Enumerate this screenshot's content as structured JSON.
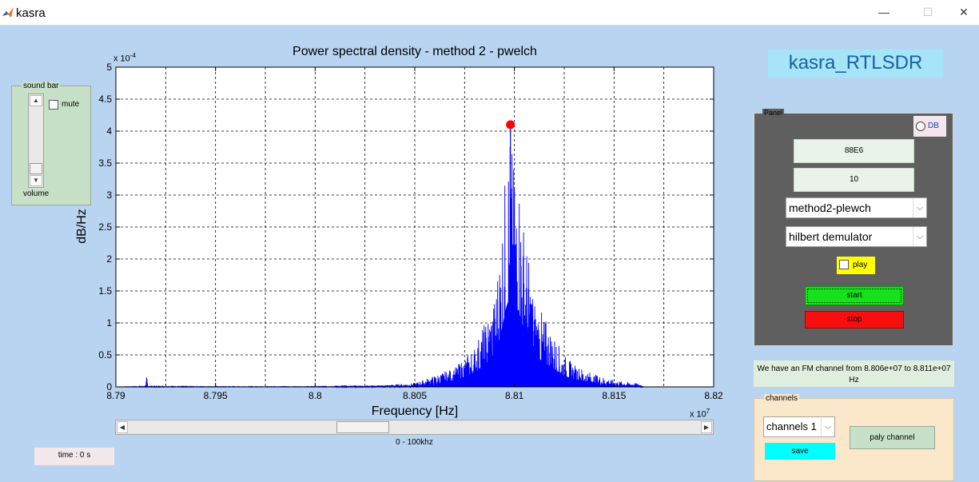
{
  "window": {
    "title": "kasra",
    "min_symbol": "—",
    "max_symbol": "☐",
    "close_symbol": "✕",
    "icon": "matlab-icon"
  },
  "sound_bar": {
    "legend": "sound bar",
    "mute_label": "mute",
    "volume_label": "volume",
    "up_arrow": "▲",
    "down_arrow": "▼"
  },
  "time_label": "time : 0 s",
  "slider": {
    "left_arrow": "◀",
    "right_arrow": "▶",
    "range_label": "0 - 100khz"
  },
  "app_name": "kasra_RTLSDR",
  "panel": {
    "legend": "Panel",
    "db_label": "DB",
    "freq_value": "88E6",
    "gain_value": "10",
    "method_value": "method2-plewch",
    "demod_value": "hilbert demulator",
    "play_label": "play",
    "start_label": "start",
    "stop_label": "stop",
    "chevron": "⌵"
  },
  "info_text": "We have an FM channel from 8.806e+07 to 8.811e+07 Hz",
  "channels": {
    "legend": "channels",
    "select_value": "channels 1",
    "save_label": "save",
    "play_channel_label": "paly channel"
  },
  "chart_data": {
    "type": "line",
    "title": "Power spectral density - method 2 - pwelch",
    "xlabel": "Frequency [Hz]",
    "ylabel": "dB/Hz",
    "x_exponent_label": "x 10",
    "x_exponent_power": "7",
    "y_exponent_label": "x 10",
    "y_exponent_power": "-4",
    "xlim": [
      8.79,
      8.82
    ],
    "ylim": [
      0,
      5
    ],
    "x_ticks": [
      8.79,
      8.795,
      8.8,
      8.805,
      8.81,
      8.815,
      8.82
    ],
    "x_tick_labels": [
      "8.79",
      "8.795",
      "8.8",
      "8.805",
      "8.81",
      "8.815",
      "8.82"
    ],
    "y_ticks": [
      0,
      0.5,
      1,
      1.5,
      2,
      2.5,
      3,
      3.5,
      4,
      4.5,
      5
    ],
    "y_tick_labels": [
      "0",
      "0.5",
      "1",
      "1.5",
      "2",
      "2.5",
      "3",
      "3.5",
      "4",
      "4.5",
      "5"
    ],
    "grid": true,
    "line_color": "#0000ff",
    "marker_color": "#ff0000",
    "peak": {
      "x": 8.8098,
      "y": 4.1
    },
    "series": [
      {
        "x": [
          8.79,
          8.7915,
          8.79155,
          8.7916,
          8.795,
          8.8,
          8.803,
          8.805,
          8.806,
          8.807,
          8.8075,
          8.808,
          8.8085,
          8.809,
          8.8093,
          8.8096,
          8.8098,
          8.81,
          8.8102,
          8.8105,
          8.811,
          8.8115,
          8.812,
          8.8125,
          8.813,
          8.814,
          8.815,
          8.8163,
          8.8165,
          8.82
        ],
        "y": [
          0,
          0.01,
          0.22,
          0.01,
          0.005,
          0.005,
          0.02,
          0.06,
          0.18,
          0.3,
          0.45,
          0.65,
          1.0,
          1.4,
          2.3,
          3.6,
          4.1,
          3.3,
          3.45,
          2.5,
          1.4,
          1.1,
          0.8,
          0.5,
          0.35,
          0.2,
          0.1,
          0.05,
          0,
          0
        ]
      }
    ]
  }
}
